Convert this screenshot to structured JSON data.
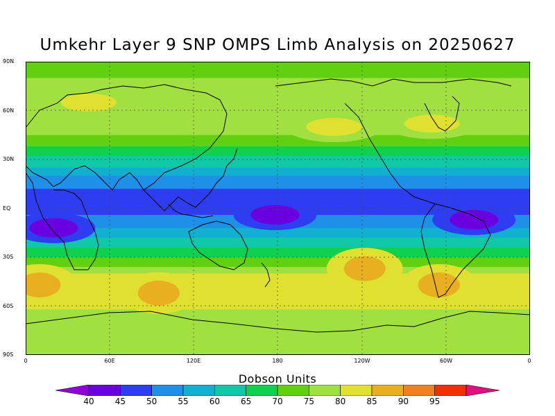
{
  "title": "Umkehr Layer 9 SNP OMPS Limb Analysis on 20250627",
  "lat_ticks": [
    "90N",
    "60N",
    "30N",
    "EQ",
    "30S",
    "60S",
    "90S"
  ],
  "lon_ticks": [
    "0",
    "60E",
    "120E",
    "180",
    "120W",
    "60W",
    "0"
  ],
  "colorbar": {
    "title": "Dobson Units",
    "labels": [
      "40",
      "45",
      "50",
      "55",
      "60",
      "65",
      "70",
      "75",
      "80",
      "85",
      "90",
      "95"
    ],
    "colors": [
      "#9000d8",
      "#6a00e0",
      "#2e3df0",
      "#1e90e8",
      "#12b0d0",
      "#10c8a8",
      "#10d050",
      "#60d010",
      "#a0e040",
      "#e0e030",
      "#e8b020",
      "#f08020",
      "#f03000",
      "#e01080"
    ]
  },
  "chart_data": {
    "type": "heatmap",
    "title": "Umkehr Layer 9 SNP OMPS Limb Analysis on 20250627",
    "xlabel": "",
    "ylabel": "",
    "xlim": [
      0,
      360
    ],
    "ylim": [
      -90,
      90
    ],
    "unit": "Dobson Units",
    "contour_levels": [
      40,
      45,
      50,
      55,
      60,
      65,
      70,
      75,
      80,
      85,
      90,
      95
    ],
    "features": [
      {
        "label": "minimum",
        "lon": 20,
        "lat": -12,
        "value": 40
      },
      {
        "label": "minimum",
        "lon": 178,
        "lat": -4,
        "value": 40
      },
      {
        "label": "minimum",
        "lon": 320,
        "lat": -7,
        "value": 40
      },
      {
        "label": "maximum",
        "lon": 95,
        "lat": -52,
        "value": 87
      },
      {
        "label": "maximum",
        "lon": 242,
        "lat": -37,
        "value": 87
      },
      {
        "label": "maximum",
        "lon": 295,
        "lat": -47,
        "value": 87
      },
      {
        "label": "maximum",
        "lon": 10,
        "lat": -47,
        "value": 87
      },
      {
        "label": "maximum",
        "lon": 220,
        "lat": 50,
        "value": 78
      },
      {
        "label": "maximum",
        "lon": 290,
        "lat": 52,
        "value": 78
      },
      {
        "label": "maximum",
        "lon": 45,
        "lat": 65,
        "value": 78
      }
    ]
  }
}
